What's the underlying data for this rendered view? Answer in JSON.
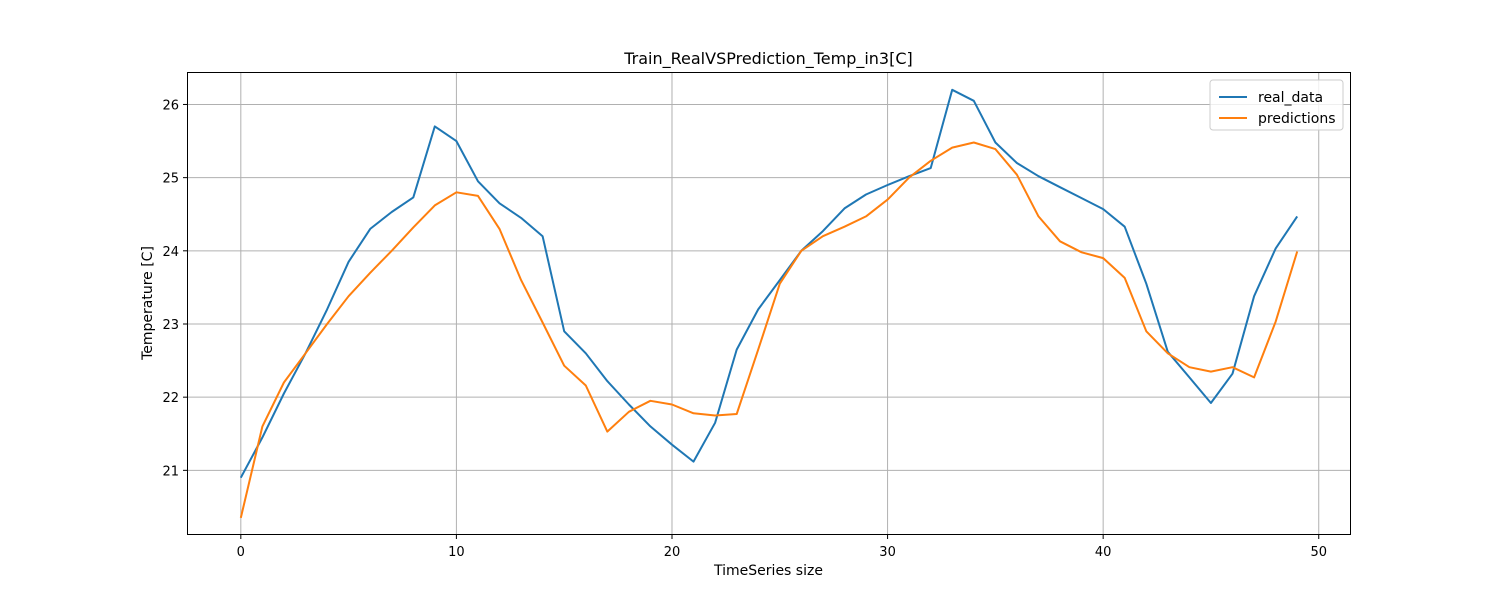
{
  "chart_data": {
    "type": "line",
    "title": "Train_RealVSPrediction_Temp_in3[C]",
    "xlabel": "TimeSeries size",
    "ylabel": "Temperature [C]",
    "xlim": [
      -2.45,
      51.45
    ],
    "ylim": [
      20.13,
      26.43
    ],
    "xticks": [
      0,
      10,
      20,
      30,
      40,
      50
    ],
    "yticks": [
      21,
      22,
      23,
      24,
      25,
      26
    ],
    "grid": true,
    "legend_position": "top-right",
    "series": [
      {
        "name": "real_data",
        "color": "#1f77b4",
        "x": [
          0,
          1,
          2,
          3,
          4,
          5,
          6,
          7,
          8,
          9,
          10,
          11,
          12,
          13,
          14,
          15,
          16,
          17,
          18,
          19,
          20,
          21,
          22,
          23,
          24,
          25,
          26,
          27,
          28,
          29,
          30,
          31,
          32,
          33,
          34,
          35,
          36,
          37,
          38,
          39,
          40,
          41,
          42,
          43,
          44,
          45,
          46,
          47,
          48,
          49
        ],
        "values": [
          20.9,
          21.45,
          22.05,
          22.6,
          23.2,
          23.85,
          24.3,
          24.53,
          24.73,
          25.7,
          25.5,
          24.95,
          24.65,
          24.45,
          24.2,
          22.9,
          22.6,
          22.22,
          21.9,
          21.6,
          21.35,
          21.12,
          21.65,
          22.65,
          23.2,
          23.6,
          24.0,
          24.27,
          24.58,
          24.77,
          24.9,
          25.02,
          25.13,
          26.2,
          26.05,
          25.48,
          25.2,
          25.02,
          24.87,
          24.72,
          24.57,
          24.33,
          23.55,
          22.62,
          22.27,
          21.92,
          22.32,
          23.38,
          24.03,
          24.47
        ]
      },
      {
        "name": "predictions",
        "color": "#ff7f0e",
        "x": [
          0,
          1,
          2,
          3,
          4,
          5,
          6,
          7,
          8,
          9,
          10,
          11,
          12,
          13,
          14,
          15,
          16,
          17,
          18,
          19,
          20,
          21,
          22,
          23,
          24,
          25,
          26,
          27,
          28,
          29,
          30,
          31,
          32,
          33,
          34,
          35,
          36,
          37,
          38,
          39,
          40,
          41,
          42,
          43,
          44,
          45,
          46,
          47,
          48,
          49
        ],
        "values": [
          20.35,
          21.6,
          22.2,
          22.6,
          23.0,
          23.38,
          23.7,
          24.0,
          24.32,
          24.62,
          24.8,
          24.75,
          24.3,
          23.6,
          23.02,
          22.43,
          22.16,
          21.53,
          21.8,
          21.95,
          21.9,
          21.78,
          21.75,
          21.77,
          22.65,
          23.55,
          24.0,
          24.2,
          24.33,
          24.47,
          24.7,
          25.0,
          25.23,
          25.41,
          25.48,
          25.39,
          25.04,
          24.47,
          24.13,
          23.98,
          23.9,
          23.63,
          22.9,
          22.6,
          22.41,
          22.35,
          22.41,
          22.27,
          23.03,
          23.99
        ]
      }
    ]
  }
}
